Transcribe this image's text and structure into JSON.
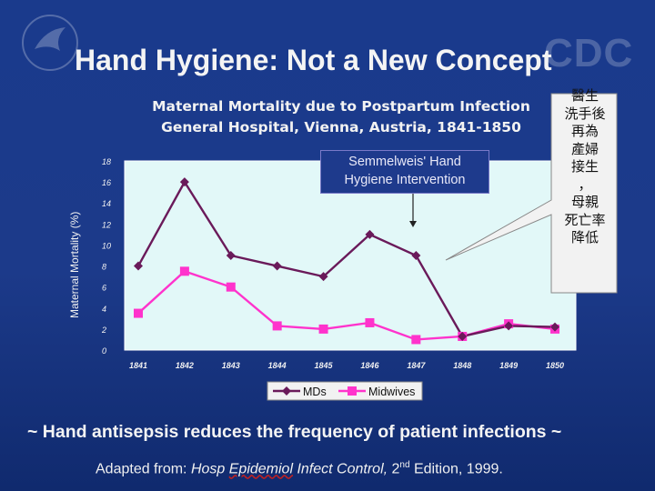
{
  "slide": {
    "title": "Hand Hygiene:  Not a New Concept",
    "watermark_text": "CDC",
    "tagline": "~ Hand antisepsis reduces the frequency of patient infections ~",
    "citation": {
      "prefix": "Adapted from: ",
      "journal_part1": "Hosp ",
      "journal_part2": "Epidemiol",
      "journal_part3": " Infect Control,",
      "edition_num": " 2",
      "edition_sup": "nd",
      "edition_rest": " Edition, 1999."
    }
  },
  "callouts": {
    "semmelweis": [
      "Semmelweis' Hand",
      "Hygiene Intervention"
    ],
    "chinese_note": [
      "醫生",
      "洗手後",
      "再為",
      "產婦",
      "接生",
      "，",
      "母親",
      "死亡率",
      "降低"
    ]
  },
  "chart_data": {
    "type": "line",
    "title": [
      "Maternal Mortality due to Postpartum Infection",
      "General Hospital, Vienna, Austria, 1841-1850"
    ],
    "ylabel": "Maternal Mortality (%)",
    "xlabel": "",
    "categories": [
      "1841",
      "1842",
      "1843",
      "1844",
      "1845",
      "1846",
      "1847",
      "1848",
      "1849",
      "1850"
    ],
    "yticks": [
      "0",
      "2",
      "4",
      "6",
      "8",
      "10",
      "12",
      "14",
      "16",
      "18"
    ],
    "ylim": [
      0,
      18
    ],
    "grid": false,
    "legend_position": "bottom",
    "series": [
      {
        "name": "MDs",
        "color": "#6a1a5a",
        "marker": "diamond",
        "values": [
          8,
          16,
          9,
          8,
          7,
          11,
          9,
          1.3,
          2.3,
          2.2
        ]
      },
      {
        "name": "Midwives",
        "color": "#ff33cc",
        "marker": "square",
        "values": [
          3.5,
          7.5,
          6,
          2.3,
          2,
          2.6,
          1,
          1.3,
          2.5,
          2
        ]
      }
    ],
    "plot_background": "#e2f8f8"
  }
}
